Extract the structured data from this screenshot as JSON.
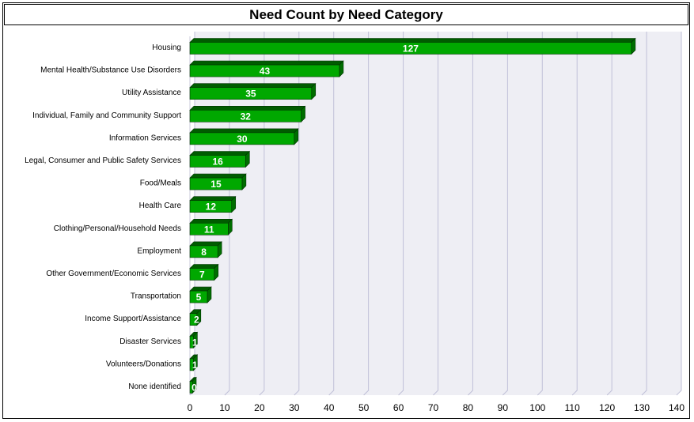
{
  "chart_data": {
    "type": "bar",
    "orientation": "horizontal",
    "title": "Need Count by Need Category",
    "xlabel": "",
    "ylabel": "",
    "xlim": [
      0,
      140
    ],
    "xticks": [
      0,
      10,
      20,
      30,
      40,
      50,
      60,
      70,
      80,
      90,
      100,
      110,
      120,
      130,
      140
    ],
    "grid": true,
    "categories": [
      "Housing",
      "Mental Health/Substance Use Disorders",
      "Utility Assistance",
      "Individual, Family and Community Support",
      "Information Services",
      "Legal, Consumer and Public Safety Services",
      "Food/Meals",
      "Health Care",
      "Clothing/Personal/Household Needs",
      "Employment",
      "Other Government/Economic Services",
      "Transportation",
      "Income Support/Assistance",
      "Disaster Services",
      "Volunteers/Donations",
      "None identified"
    ],
    "values": [
      127,
      43,
      35,
      32,
      30,
      16,
      15,
      12,
      11,
      8,
      7,
      5,
      2,
      1,
      1,
      0
    ],
    "colors": {
      "bar_front": "#00a800",
      "bar_top": "#005c00",
      "bar_side": "#006e00",
      "bar_edge": "#003300",
      "plot_bg": "#eeeef4",
      "grid": "#c0c0d8"
    }
  }
}
